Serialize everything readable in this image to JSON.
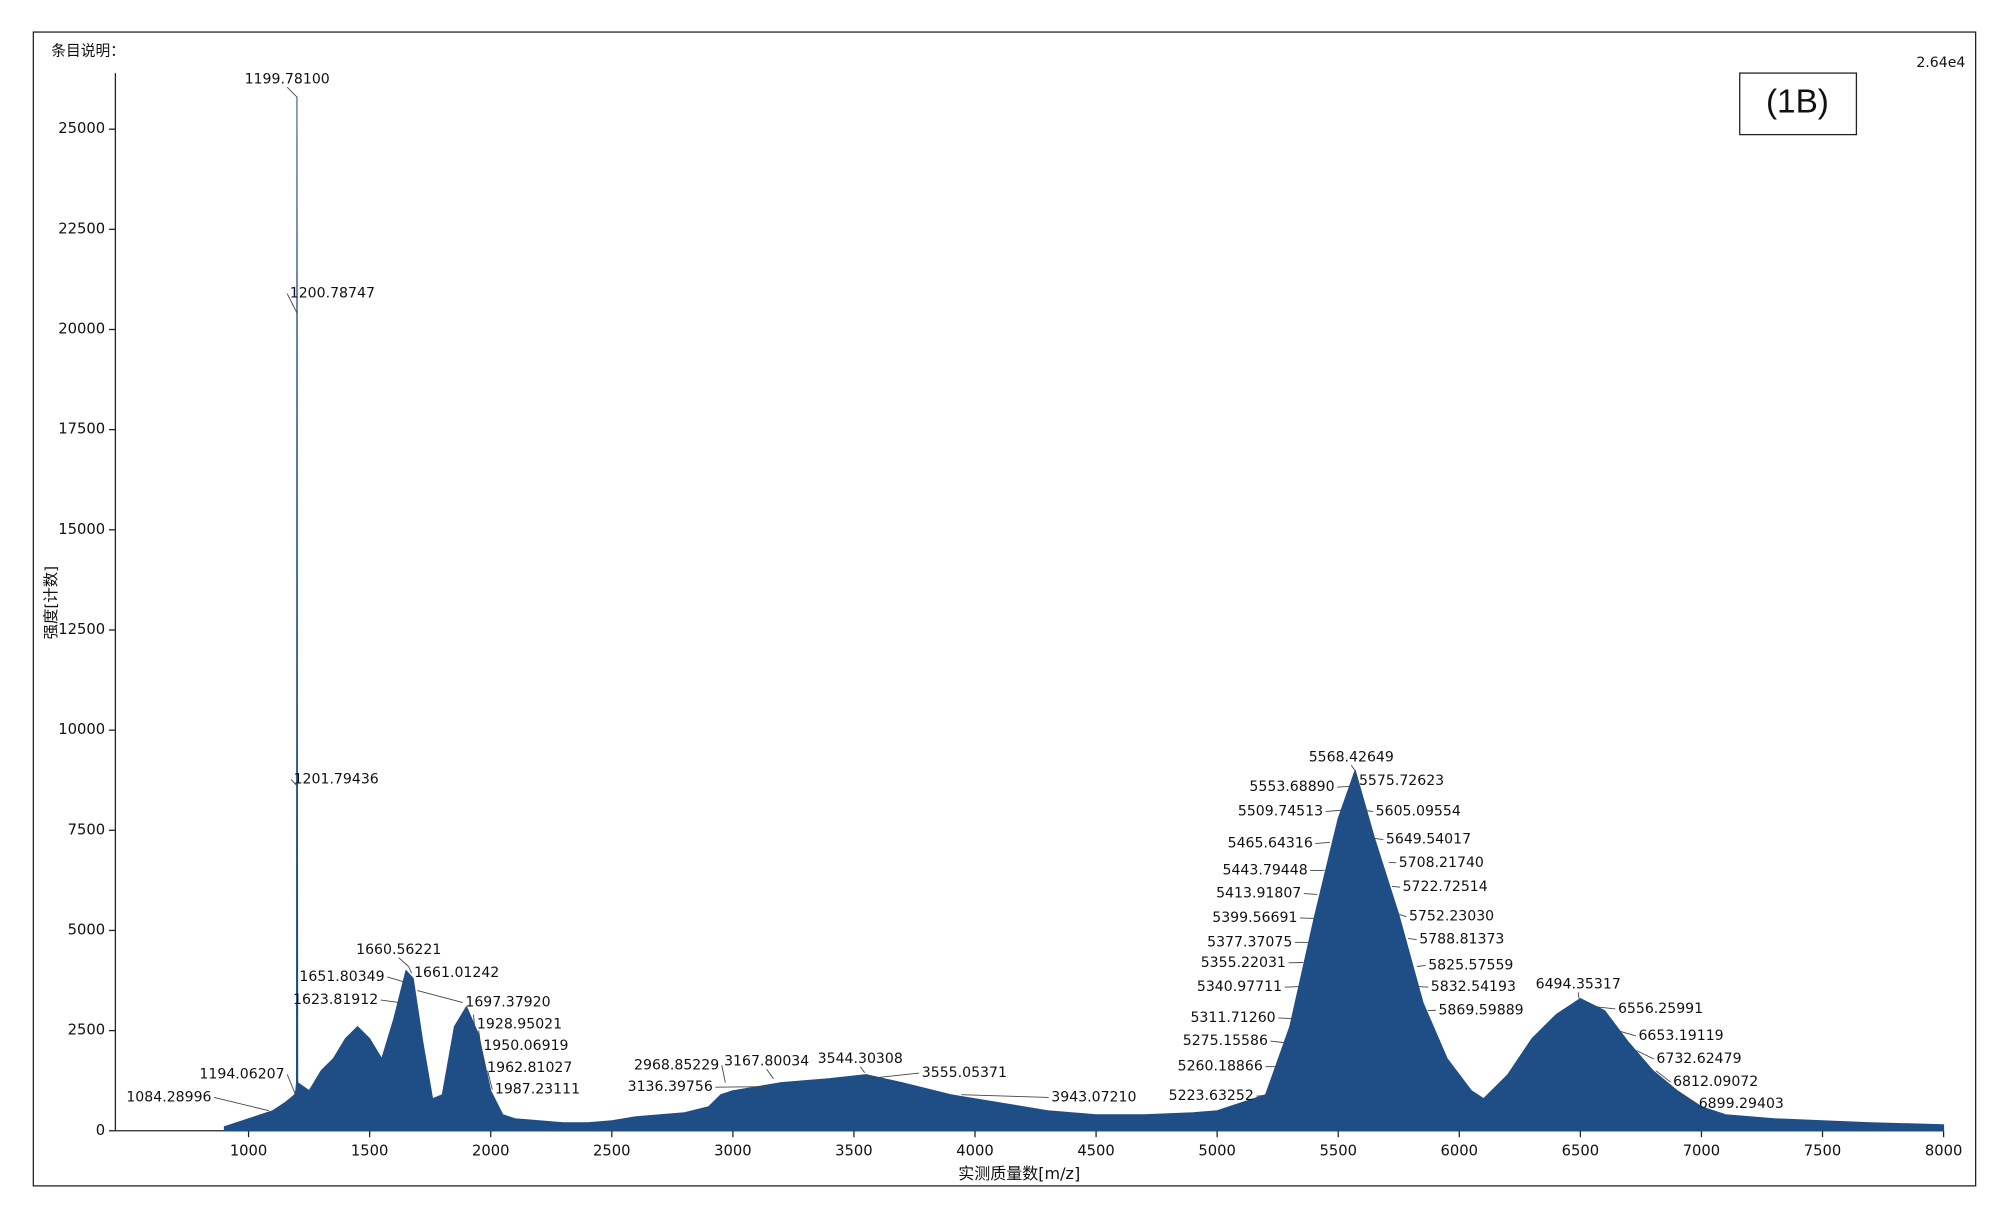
{
  "chart_data": {
    "type": "line",
    "corner_label": "条目说明：",
    "ylim_label": "2.64e4",
    "panel_label": "(1B)",
    "x_label": "实测质量数[m/z]",
    "y_label": "强度[计数]",
    "xlim": [
      450,
      8000
    ],
    "ylim": [
      0,
      26400
    ],
    "xticks": [
      1000,
      1500,
      2000,
      2500,
      3000,
      3500,
      4000,
      4500,
      5000,
      5500,
      6000,
      6500,
      7000,
      7500,
      8000
    ],
    "yticks": [
      0,
      2500,
      5000,
      7500,
      10000,
      12500,
      15000,
      17500,
      20000,
      22500,
      25000
    ],
    "series": [
      {
        "color": "#1f4e86",
        "x": [
          900,
          950,
          1000,
          1050,
          1100,
          1150,
          1190,
          1195,
          1198,
          1199.781,
          1200.787,
          1201.794,
          1203,
          1250,
          1300,
          1350,
          1400,
          1450,
          1500,
          1550,
          1600,
          1650,
          1680,
          1720,
          1760,
          1800,
          1850,
          1900,
          1950,
          2000,
          2050,
          2100,
          2200,
          2300,
          2400,
          2500,
          2600,
          2700,
          2800,
          2900,
          2950,
          3000,
          3200,
          3400,
          3550,
          3700,
          3900,
          4100,
          4300,
          4500,
          4700,
          4900,
          5000,
          5100,
          5200,
          5300,
          5400,
          5500,
          5570,
          5650,
          5750,
          5850,
          5950,
          6050,
          6100,
          6200,
          6300,
          6400,
          6500,
          6600,
          6700,
          6800,
          6900,
          7000,
          7100,
          7300,
          7500,
          7700,
          8000
        ],
        "values": [
          100,
          200,
          300,
          400,
          500,
          700,
          900,
          1000,
          1200,
          25800,
          20400,
          8600,
          1200,
          1000,
          1500,
          1800,
          2300,
          2600,
          2300,
          1800,
          2800,
          4000,
          3800,
          2200,
          800,
          900,
          2600,
          3100,
          2400,
          1000,
          400,
          300,
          250,
          200,
          200,
          250,
          350,
          400,
          450,
          600,
          900,
          1000,
          1200,
          1300,
          1400,
          1200,
          900,
          700,
          500,
          400,
          400,
          450,
          500,
          700,
          900,
          2600,
          5300,
          7800,
          9000,
          7300,
          5400,
          3200,
          1800,
          1000,
          800,
          1400,
          2300,
          2900,
          3300,
          3000,
          2200,
          1500,
          1000,
          600,
          400,
          300,
          250,
          200,
          150
        ]
      }
    ],
    "annotations": [
      {
        "x": 1084.28996,
        "y": 500,
        "label": "1084.28996"
      },
      {
        "x": 1194.06207,
        "y": 900,
        "label": "1194.06207"
      },
      {
        "x": 1199.781,
        "y": 25800,
        "label": "1199.78100"
      },
      {
        "x": 1200.78747,
        "y": 20400,
        "label": "1200.78747"
      },
      {
        "x": 1201.79436,
        "y": 8600,
        "label": "1201.79436"
      },
      {
        "x": 1623.81912,
        "y": 3200,
        "label": "1623.81912"
      },
      {
        "x": 1651.80349,
        "y": 3700,
        "label": "1651.80349"
      },
      {
        "x": 1660.56221,
        "y": 4100,
        "label": "1660.56221"
      },
      {
        "x": 1661.01242,
        "y": 4100,
        "label": "1661.01242"
      },
      {
        "x": 1697.3792,
        "y": 3500,
        "label": "1697.37920"
      },
      {
        "x": 1928.95021,
        "y": 2900,
        "label": "1928.95021"
      },
      {
        "x": 1950.06919,
        "y": 2500,
        "label": "1950.06919"
      },
      {
        "x": 1962.81027,
        "y": 2000,
        "label": "1962.81027"
      },
      {
        "x": 1987.23111,
        "y": 1500,
        "label": "1987.23111"
      },
      {
        "x": 2968.85229,
        "y": 1200,
        "label": "2968.85229"
      },
      {
        "x": 3136.39756,
        "y": 1100,
        "label": "3136.39756"
      },
      {
        "x": 3167.80034,
        "y": 1300,
        "label": "3167.80034"
      },
      {
        "x": 3544.30308,
        "y": 1450,
        "label": "3544.30308"
      },
      {
        "x": 3555.05371,
        "y": 1300,
        "label": "3555.05371"
      },
      {
        "x": 3943.0721,
        "y": 900,
        "label": "3943.07210"
      },
      {
        "x": 5223.63252,
        "y": 900,
        "label": "5223.63252"
      },
      {
        "x": 5260.18866,
        "y": 1600,
        "label": "5260.18866"
      },
      {
        "x": 5275.15586,
        "y": 2200,
        "label": "5275.15586"
      },
      {
        "x": 5311.7126,
        "y": 2800,
        "label": "5311.71260"
      },
      {
        "x": 5340.97711,
        "y": 3600,
        "label": "5340.97711"
      },
      {
        "x": 5355.22031,
        "y": 4200,
        "label": "5355.22031"
      },
      {
        "x": 5377.37075,
        "y": 4700,
        "label": "5377.37075"
      },
      {
        "x": 5399.56691,
        "y": 5300,
        "label": "5399.56691"
      },
      {
        "x": 5413.91807,
        "y": 5900,
        "label": "5413.91807"
      },
      {
        "x": 5443.79448,
        "y": 6500,
        "label": "5443.79448"
      },
      {
        "x": 5465.64316,
        "y": 7200,
        "label": "5465.64316"
      },
      {
        "x": 5509.74513,
        "y": 8000,
        "label": "5509.74513"
      },
      {
        "x": 5553.6889,
        "y": 8600,
        "label": "5553.68890"
      },
      {
        "x": 5568.42649,
        "y": 9000,
        "label": "5568.42649"
      },
      {
        "x": 5575.72623,
        "y": 8800,
        "label": "5575.72623"
      },
      {
        "x": 5605.09554,
        "y": 8000,
        "label": "5605.09554"
      },
      {
        "x": 5649.54017,
        "y": 7300,
        "label": "5649.54017"
      },
      {
        "x": 5708.2174,
        "y": 6700,
        "label": "5708.21740"
      },
      {
        "x": 5722.72514,
        "y": 6100,
        "label": "5722.72514"
      },
      {
        "x": 5752.2303,
        "y": 5400,
        "label": "5752.23030"
      },
      {
        "x": 5788.81373,
        "y": 4800,
        "label": "5788.81373"
      },
      {
        "x": 5825.57559,
        "y": 4100,
        "label": "5825.57559"
      },
      {
        "x": 5832.54193,
        "y": 3600,
        "label": "5832.54193"
      },
      {
        "x": 5869.59889,
        "y": 3000,
        "label": "5869.59889"
      },
      {
        "x": 6494.35317,
        "y": 3300,
        "label": "6494.35317"
      },
      {
        "x": 6556.25991,
        "y": 3100,
        "label": "6556.25991"
      },
      {
        "x": 6653.19119,
        "y": 2500,
        "label": "6653.19119"
      },
      {
        "x": 6732.62479,
        "y": 2000,
        "label": "6732.62479"
      },
      {
        "x": 6812.09072,
        "y": 1500,
        "label": "6812.09072"
      },
      {
        "x": 6899.29403,
        "y": 1000,
        "label": "6899.29403"
      }
    ]
  }
}
